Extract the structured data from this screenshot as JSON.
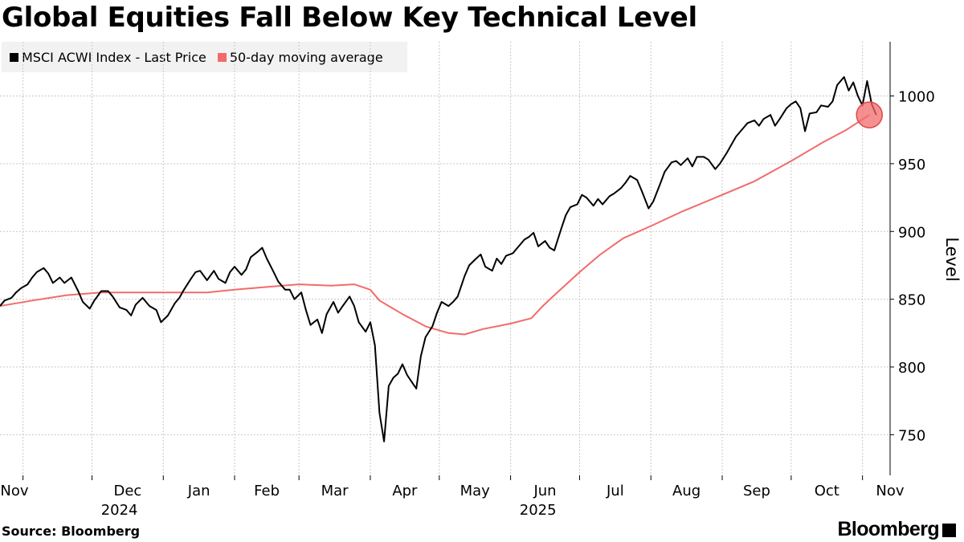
{
  "title": "Global Equities Fall Below Key Technical Level",
  "legend": [
    {
      "label": "MSCI ACWI Index - Last Price",
      "color": "#000000"
    },
    {
      "label": "50-day moving average",
      "color": "#f26b6b"
    }
  ],
  "footer": {
    "source": "Source:  Bloomberg",
    "brand": "Bloomberg"
  },
  "chart_data": {
    "type": "line",
    "title": "Global Equities Fall Below Key Technical Level",
    "ylabel": "Level",
    "ylim": [
      720,
      1040
    ],
    "yticks": [
      750,
      800,
      850,
      900,
      950,
      1000
    ],
    "x_months": [
      {
        "label": "Nov",
        "date": "2024-11-01"
      },
      {
        "label": "Dec",
        "date": "2024-12-01"
      },
      {
        "label": "Jan",
        "date": "2025-01-01"
      },
      {
        "label": "Feb",
        "date": "2025-02-01"
      },
      {
        "label": "Mar",
        "date": "2025-03-01"
      },
      {
        "label": "Apr",
        "date": "2025-04-01"
      },
      {
        "label": "May",
        "date": "2025-05-01"
      },
      {
        "label": "Jun",
        "date": "2025-06-01"
      },
      {
        "label": "Jul",
        "date": "2025-07-01"
      },
      {
        "label": "Aug",
        "date": "2025-08-01"
      },
      {
        "label": "Sep",
        "date": "2025-09-01"
      },
      {
        "label": "Oct",
        "date": "2025-10-01"
      },
      {
        "label": "Nov",
        "date": "2025-11-01"
      }
    ],
    "year_labels": [
      {
        "label": "2024",
        "date": "2024-12-15"
      },
      {
        "label": "2025",
        "date": "2025-06-15"
      }
    ],
    "xlim": [
      "2024-10-22",
      "2025-11-13"
    ],
    "grid": true,
    "legend_position": "top-left",
    "highlight": {
      "date": "2025-11-04",
      "value": 986,
      "color": "#f26b6b"
    },
    "series": [
      {
        "name": "MSCI ACWI Index - Last Price",
        "color": "#000000",
        "points": [
          [
            "2024-10-22",
            845
          ],
          [
            "2024-10-24",
            849
          ],
          [
            "2024-10-27",
            851
          ],
          [
            "2024-10-29",
            855
          ],
          [
            "2024-10-31",
            858
          ],
          [
            "2024-11-03",
            861
          ],
          [
            "2024-11-05",
            866
          ],
          [
            "2024-11-07",
            870
          ],
          [
            "2024-11-10",
            873
          ],
          [
            "2024-11-12",
            869
          ],
          [
            "2024-11-14",
            862
          ],
          [
            "2024-11-17",
            866
          ],
          [
            "2024-11-19",
            862
          ],
          [
            "2024-11-22",
            866
          ],
          [
            "2024-11-25",
            856
          ],
          [
            "2024-11-27",
            848
          ],
          [
            "2024-11-30",
            843
          ],
          [
            "2024-12-02",
            849
          ],
          [
            "2024-12-05",
            856
          ],
          [
            "2024-12-08",
            856
          ],
          [
            "2024-12-10",
            852
          ],
          [
            "2024-12-13",
            844
          ],
          [
            "2024-12-16",
            842
          ],
          [
            "2024-12-18",
            838
          ],
          [
            "2024-12-20",
            846
          ],
          [
            "2024-12-23",
            851
          ],
          [
            "2024-12-26",
            845
          ],
          [
            "2024-12-29",
            842
          ],
          [
            "2024-12-31",
            833
          ],
          [
            "2025-01-03",
            838
          ],
          [
            "2025-01-06",
            847
          ],
          [
            "2025-01-08",
            851
          ],
          [
            "2025-01-10",
            857
          ],
          [
            "2025-01-13",
            865
          ],
          [
            "2025-01-15",
            870
          ],
          [
            "2025-01-17",
            871
          ],
          [
            "2025-01-20",
            864
          ],
          [
            "2025-01-23",
            871
          ],
          [
            "2025-01-25",
            865
          ],
          [
            "2025-01-28",
            862
          ],
          [
            "2025-01-30",
            870
          ],
          [
            "2025-02-01",
            874
          ],
          [
            "2025-02-04",
            868
          ],
          [
            "2025-02-06",
            872
          ],
          [
            "2025-02-08",
            881
          ],
          [
            "2025-02-11",
            885
          ],
          [
            "2025-02-13",
            888
          ],
          [
            "2025-02-15",
            880
          ],
          [
            "2025-02-18",
            870
          ],
          [
            "2025-02-20",
            863
          ],
          [
            "2025-02-23",
            857
          ],
          [
            "2025-02-25",
            857
          ],
          [
            "2025-02-27",
            850
          ],
          [
            "2025-03-02",
            855
          ],
          [
            "2025-03-04",
            842
          ],
          [
            "2025-03-06",
            831
          ],
          [
            "2025-03-09",
            835
          ],
          [
            "2025-03-11",
            825
          ],
          [
            "2025-03-13",
            839
          ],
          [
            "2025-03-16",
            848
          ],
          [
            "2025-03-18",
            840
          ],
          [
            "2025-03-20",
            845
          ],
          [
            "2025-03-23",
            852
          ],
          [
            "2025-03-25",
            845
          ],
          [
            "2025-03-27",
            833
          ],
          [
            "2025-03-30",
            826
          ],
          [
            "2025-04-01",
            833
          ],
          [
            "2025-04-03",
            816
          ],
          [
            "2025-04-05",
            766
          ],
          [
            "2025-04-07",
            745
          ],
          [
            "2025-04-09",
            786
          ],
          [
            "2025-04-11",
            792
          ],
          [
            "2025-04-13",
            795
          ],
          [
            "2025-04-15",
            802
          ],
          [
            "2025-04-17",
            794
          ],
          [
            "2025-04-19",
            789
          ],
          [
            "2025-04-21",
            784
          ],
          [
            "2025-04-23",
            808
          ],
          [
            "2025-04-25",
            822
          ],
          [
            "2025-04-28",
            830
          ],
          [
            "2025-04-30",
            840
          ],
          [
            "2025-05-02",
            848
          ],
          [
            "2025-05-05",
            845
          ],
          [
            "2025-05-07",
            848
          ],
          [
            "2025-05-09",
            852
          ],
          [
            "2025-05-12",
            867
          ],
          [
            "2025-05-14",
            875
          ],
          [
            "2025-05-17",
            880
          ],
          [
            "2025-05-19",
            883
          ],
          [
            "2025-05-21",
            874
          ],
          [
            "2025-05-24",
            871
          ],
          [
            "2025-05-26",
            880
          ],
          [
            "2025-05-28",
            876
          ],
          [
            "2025-05-30",
            882
          ],
          [
            "2025-06-02",
            884
          ],
          [
            "2025-06-04",
            888
          ],
          [
            "2025-06-07",
            894
          ],
          [
            "2025-06-09",
            896
          ],
          [
            "2025-06-11",
            899
          ],
          [
            "2025-06-13",
            889
          ],
          [
            "2025-06-16",
            893
          ],
          [
            "2025-06-18",
            888
          ],
          [
            "2025-06-20",
            886
          ],
          [
            "2025-06-23",
            902
          ],
          [
            "2025-06-25",
            912
          ],
          [
            "2025-06-27",
            918
          ],
          [
            "2025-06-30",
            920
          ],
          [
            "2025-07-02",
            927
          ],
          [
            "2025-07-04",
            925
          ],
          [
            "2025-07-07",
            919
          ],
          [
            "2025-07-09",
            924
          ],
          [
            "2025-07-11",
            920
          ],
          [
            "2025-07-14",
            926
          ],
          [
            "2025-07-16",
            928
          ],
          [
            "2025-07-19",
            932
          ],
          [
            "2025-07-21",
            936
          ],
          [
            "2025-07-23",
            941
          ],
          [
            "2025-07-26",
            938
          ],
          [
            "2025-07-28",
            930
          ],
          [
            "2025-07-31",
            917
          ],
          [
            "2025-08-02",
            922
          ],
          [
            "2025-08-05",
            935
          ],
          [
            "2025-08-07",
            944
          ],
          [
            "2025-08-10",
            951
          ],
          [
            "2025-08-12",
            952
          ],
          [
            "2025-08-14",
            949
          ],
          [
            "2025-08-17",
            954
          ],
          [
            "2025-08-19",
            948
          ],
          [
            "2025-08-21",
            955
          ],
          [
            "2025-08-24",
            955
          ],
          [
            "2025-08-26",
            953
          ],
          [
            "2025-08-29",
            946
          ],
          [
            "2025-08-31",
            950
          ],
          [
            "2025-09-03",
            958
          ],
          [
            "2025-09-05",
            964
          ],
          [
            "2025-09-07",
            970
          ],
          [
            "2025-09-10",
            976
          ],
          [
            "2025-09-12",
            980
          ],
          [
            "2025-09-15",
            982
          ],
          [
            "2025-09-17",
            978
          ],
          [
            "2025-09-19",
            983
          ],
          [
            "2025-09-22",
            986
          ],
          [
            "2025-09-24",
            978
          ],
          [
            "2025-09-26",
            983
          ],
          [
            "2025-09-29",
            991
          ],
          [
            "2025-10-01",
            994
          ],
          [
            "2025-10-03",
            996
          ],
          [
            "2025-10-05",
            991
          ],
          [
            "2025-10-07",
            974
          ],
          [
            "2025-10-09",
            987
          ],
          [
            "2025-10-12",
            988
          ],
          [
            "2025-10-14",
            993
          ],
          [
            "2025-10-17",
            992
          ],
          [
            "2025-10-19",
            996
          ],
          [
            "2025-10-21",
            1008
          ],
          [
            "2025-10-24",
            1014
          ],
          [
            "2025-10-26",
            1004
          ],
          [
            "2025-10-28",
            1010
          ],
          [
            "2025-10-30",
            1000
          ],
          [
            "2025-11-01",
            993
          ],
          [
            "2025-11-03",
            1011
          ],
          [
            "2025-11-05",
            994
          ],
          [
            "2025-11-07",
            986
          ]
        ]
      },
      {
        "name": "50-day moving average",
        "color": "#f26b6b",
        "points": [
          [
            "2024-10-22",
            845
          ],
          [
            "2024-11-05",
            849
          ],
          [
            "2024-11-20",
            853
          ],
          [
            "2024-12-05",
            855
          ],
          [
            "2024-12-20",
            855
          ],
          [
            "2025-01-05",
            855
          ],
          [
            "2025-01-20",
            855
          ],
          [
            "2025-02-01",
            857
          ],
          [
            "2025-02-15",
            859
          ],
          [
            "2025-03-01",
            861
          ],
          [
            "2025-03-15",
            860
          ],
          [
            "2025-03-25",
            861
          ],
          [
            "2025-04-01",
            857
          ],
          [
            "2025-04-05",
            849
          ],
          [
            "2025-04-15",
            839
          ],
          [
            "2025-04-25",
            830
          ],
          [
            "2025-05-05",
            825
          ],
          [
            "2025-05-12",
            824
          ],
          [
            "2025-05-20",
            828
          ],
          [
            "2025-06-01",
            832
          ],
          [
            "2025-06-10",
            836
          ],
          [
            "2025-06-15",
            845
          ],
          [
            "2025-06-20",
            853
          ],
          [
            "2025-07-01",
            870
          ],
          [
            "2025-07-10",
            883
          ],
          [
            "2025-07-20",
            895
          ],
          [
            "2025-08-01",
            904
          ],
          [
            "2025-08-15",
            915
          ],
          [
            "2025-09-01",
            927
          ],
          [
            "2025-09-15",
            937
          ],
          [
            "2025-10-01",
            952
          ],
          [
            "2025-10-15",
            966
          ],
          [
            "2025-10-25",
            975
          ],
          [
            "2025-11-04",
            986
          ]
        ]
      }
    ]
  }
}
